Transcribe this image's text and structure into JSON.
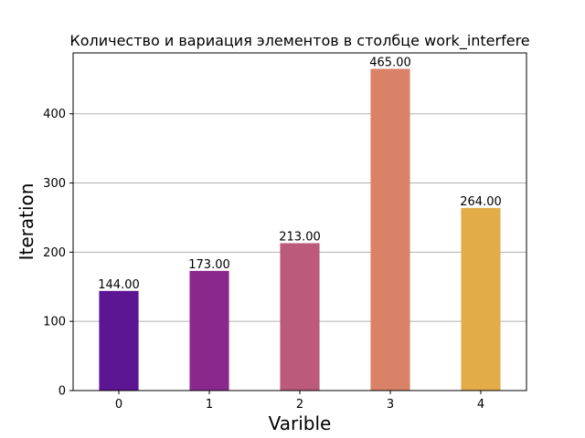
{
  "chart_data": {
    "type": "bar",
    "title": "Количество и вариация элементов в столбце work_interfere",
    "xlabel": "Varible",
    "ylabel": "Iteration",
    "categories": [
      "0",
      "1",
      "2",
      "3",
      "4"
    ],
    "values": [
      144,
      173,
      213,
      465,
      264
    ],
    "data_labels": [
      "144.00",
      "173.00",
      "213.00",
      "465.00",
      "264.00"
    ],
    "ylim": [
      0,
      488
    ],
    "yticks": [
      0,
      100,
      200,
      300,
      400
    ],
    "grid": "horizontal",
    "colors": [
      "#5c1593",
      "#8b288c",
      "#bb5a7a",
      "#da8268",
      "#e2ad49"
    ]
  }
}
